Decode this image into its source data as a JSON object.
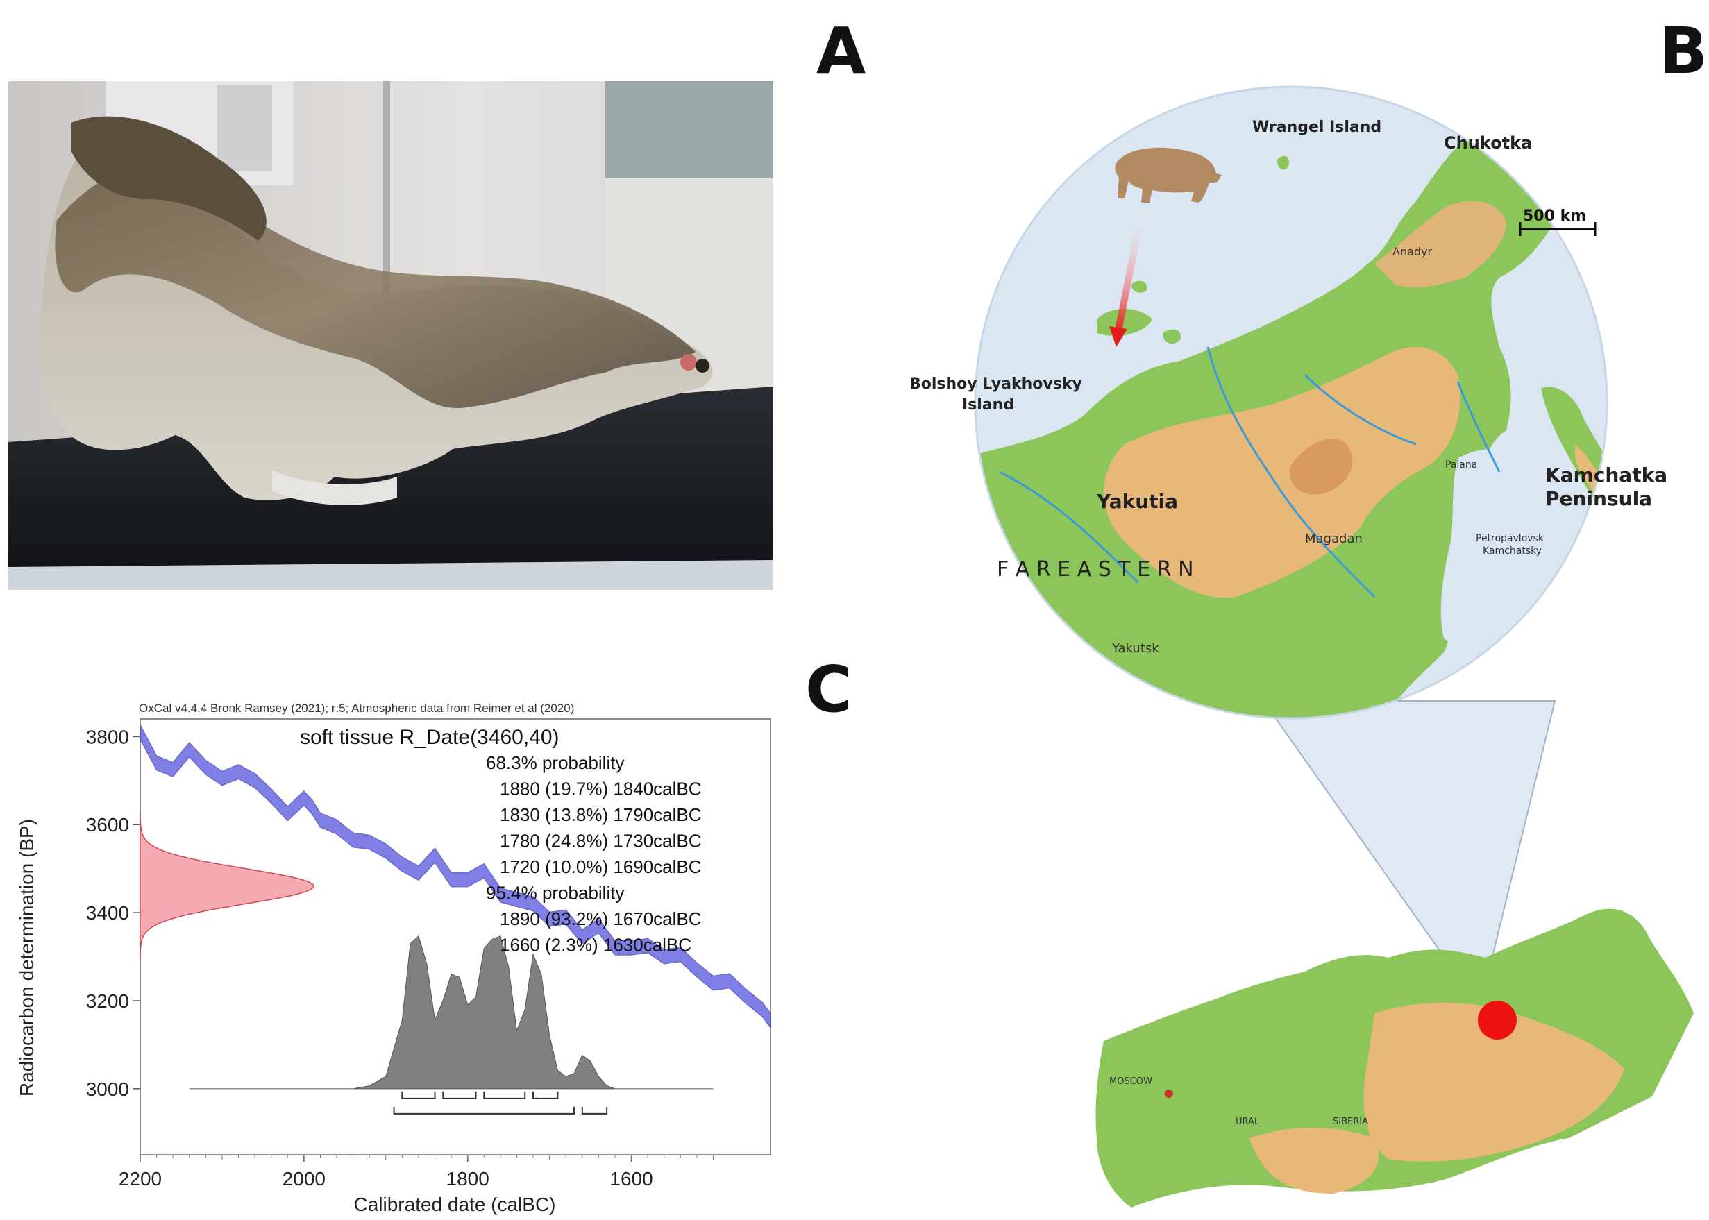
{
  "panels": {
    "a": "A",
    "b": "B",
    "c": "C"
  },
  "photo": {
    "description_icon": "frozen-bear-carcass-photo"
  },
  "map": {
    "labels": {
      "wrangel": "Wrangel Island",
      "chukotka": "Chukotka",
      "scale": "500 km",
      "anadyr": "Anadyr",
      "bolshoy1": "Bolshoy Lyakhovsky",
      "bolshoy2": "Island",
      "yakutia": "Yakutia",
      "kamchatka1": "Kamchatka",
      "kamchatka2": "Peninsula",
      "palana": "Palana",
      "magadan": "Magadan",
      "petro1": "Petropavlovsk",
      "petro2": "Kamchatsky",
      "fareastern": "F A R  E A S T E R N",
      "yakutsk": "Yakutsk",
      "moscow": "MOSCOW",
      "ural": "URAL",
      "siberia": "SIBERIA"
    },
    "colors": {
      "land": "#8cc65a",
      "highland": "#e8b878",
      "sea": "#dbe6f3",
      "arrow": "#e41b1b",
      "marker": "#ee1111"
    }
  },
  "chart_data": {
    "type": "area",
    "header": "OxCal v4.4.4 Bronk Ramsey (2021); r:5; Atmospheric data from Reimer et al (2020)",
    "title": "soft tissue R_Date(3460,40)",
    "annotations": [
      "68.3% probability",
      "1880 (19.7%) 1840calBC",
      "1830 (13.8%) 1790calBC",
      "1780 (24.8%) 1730calBC",
      "1720 (10.0%) 1690calBC",
      "95.4% probability",
      "1890 (93.2%) 1670calBC",
      "1660 (2.3%) 1630calBC"
    ],
    "xlabel": "Calibrated date (calBC)",
    "ylabel": "Radiocarbon determination (BP)",
    "xlim": [
      2200,
      1430
    ],
    "ylim": [
      2850,
      3840
    ],
    "xticks": [
      2200,
      2000,
      1800,
      1600
    ],
    "yticks": [
      3000,
      3200,
      3400,
      3600,
      3800
    ],
    "series": [
      {
        "kind": "calibration-curve",
        "color": "#5555dd",
        "x": [
          2200,
          2180,
          2160,
          2140,
          2120,
          2100,
          2080,
          2060,
          2040,
          2020,
          2000,
          1990,
          1980,
          1960,
          1940,
          1920,
          1900,
          1880,
          1860,
          1840,
          1820,
          1800,
          1780,
          1760,
          1740,
          1720,
          1700,
          1680,
          1660,
          1640,
          1620,
          1600,
          1580,
          1560,
          1540,
          1520,
          1500,
          1480,
          1460,
          1440,
          1430
        ],
        "y": [
          3810,
          3740,
          3725,
          3770,
          3730,
          3705,
          3720,
          3700,
          3665,
          3625,
          3660,
          3640,
          3610,
          3595,
          3565,
          3560,
          3540,
          3510,
          3490,
          3530,
          3475,
          3475,
          3495,
          3440,
          3430,
          3420,
          3385,
          3390,
          3345,
          3370,
          3320,
          3320,
          3325,
          3300,
          3305,
          3270,
          3240,
          3245,
          3210,
          3180,
          3155
        ]
      },
      {
        "kind": "radiocarbon-date-distribution",
        "color": "#f4aab0",
        "mean_bp": 3460,
        "sigma_bp": 40
      },
      {
        "kind": "calibrated-probability",
        "color": "#808080",
        "x": [
          2140,
          1940,
          1920,
          1900,
          1880,
          1870,
          1860,
          1850,
          1840,
          1830,
          1820,
          1810,
          1800,
          1790,
          1780,
          1770,
          1760,
          1750,
          1740,
          1730,
          1720,
          1710,
          1700,
          1690,
          1680,
          1670,
          1660,
          1650,
          1640,
          1630,
          1620,
          1500
        ],
        "p": [
          0,
          0,
          0.02,
          0.08,
          0.45,
          0.95,
          1.0,
          0.82,
          0.45,
          0.58,
          0.75,
          0.73,
          0.55,
          0.6,
          0.92,
          0.98,
          1.0,
          0.8,
          0.38,
          0.52,
          0.88,
          0.75,
          0.35,
          0.12,
          0.08,
          0.1,
          0.22,
          0.18,
          0.08,
          0.02,
          0,
          0
        ]
      }
    ],
    "ranges_68": [
      [
        1880,
        1840
      ],
      [
        1830,
        1790
      ],
      [
        1780,
        1730
      ],
      [
        1720,
        1690
      ]
    ],
    "ranges_95": [
      [
        1890,
        1670
      ],
      [
        1660,
        1630
      ]
    ]
  }
}
